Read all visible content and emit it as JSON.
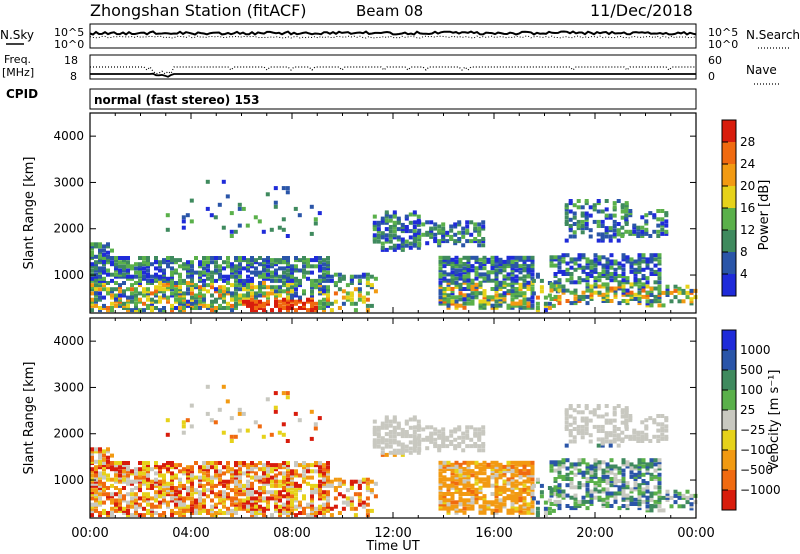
{
  "header": {
    "title": "Zhongshan Station (fitACF)",
    "beam": "Beam 08",
    "date": "11/Dec/2018"
  },
  "status_panels": {
    "sky_label": "N.Sky",
    "sky_ticks": [
      "10^5",
      "10^0"
    ],
    "search_label": "N.Search",
    "search_ticks": [
      "10^5",
      "10^0"
    ],
    "freq_label_1": "Freq.",
    "freq_label_2": "[MHz]",
    "freq_ticks": [
      "18",
      "8"
    ],
    "nave_label": "Nave",
    "nave_ticks": [
      "60",
      "0"
    ],
    "cpid_label": "CPID",
    "cpid_value": "normal (fast stereo) 153"
  },
  "colors": {
    "power_scale": [
      "#1f2bd9",
      "#2a55a8",
      "#3f8a5e",
      "#5ab04a",
      "#e6d21a",
      "#f29a12",
      "#f06a10",
      "#d81c0c"
    ],
    "velocity_scale": [
      "#1f2bd9",
      "#2a55a8",
      "#3f8a5e",
      "#5ab04a",
      "#c8c8c0",
      "#e6d21a",
      "#f29a12",
      "#f06a10",
      "#d81c0c"
    ]
  },
  "chart_data": [
    {
      "type": "heatmap",
      "name": "Power",
      "xlabel": "",
      "ylabel": "Slant Range [km]",
      "x_ticks": [
        "00:00",
        "04:00",
        "08:00",
        "12:00",
        "16:00",
        "20:00",
        "00:00"
      ],
      "y_ticks": [
        "1000",
        "2000",
        "3000",
        "4000"
      ],
      "ylim": [
        180,
        4500
      ],
      "colorbar_label": "Power [dB]",
      "colorbar_ticks": [
        "4",
        "8",
        "12",
        "16",
        "20",
        "24",
        "28"
      ],
      "colorbar_range": [
        0,
        32
      ]
    },
    {
      "type": "heatmap",
      "name": "Velocity",
      "xlabel": "Time UT",
      "ylabel": "Slant Range [km]",
      "x_ticks": [
        "00:00",
        "04:00",
        "08:00",
        "12:00",
        "16:00",
        "20:00",
        "00:00"
      ],
      "y_ticks": [
        "1000",
        "2000",
        "3000",
        "4000"
      ],
      "ylim": [
        180,
        4500
      ],
      "colorbar_label": "Velocity [m s⁻¹]",
      "colorbar_ticks": [
        "1000",
        "500",
        "100",
        "25",
        "−25",
        "−100",
        "−500",
        "−1000"
      ]
    }
  ]
}
